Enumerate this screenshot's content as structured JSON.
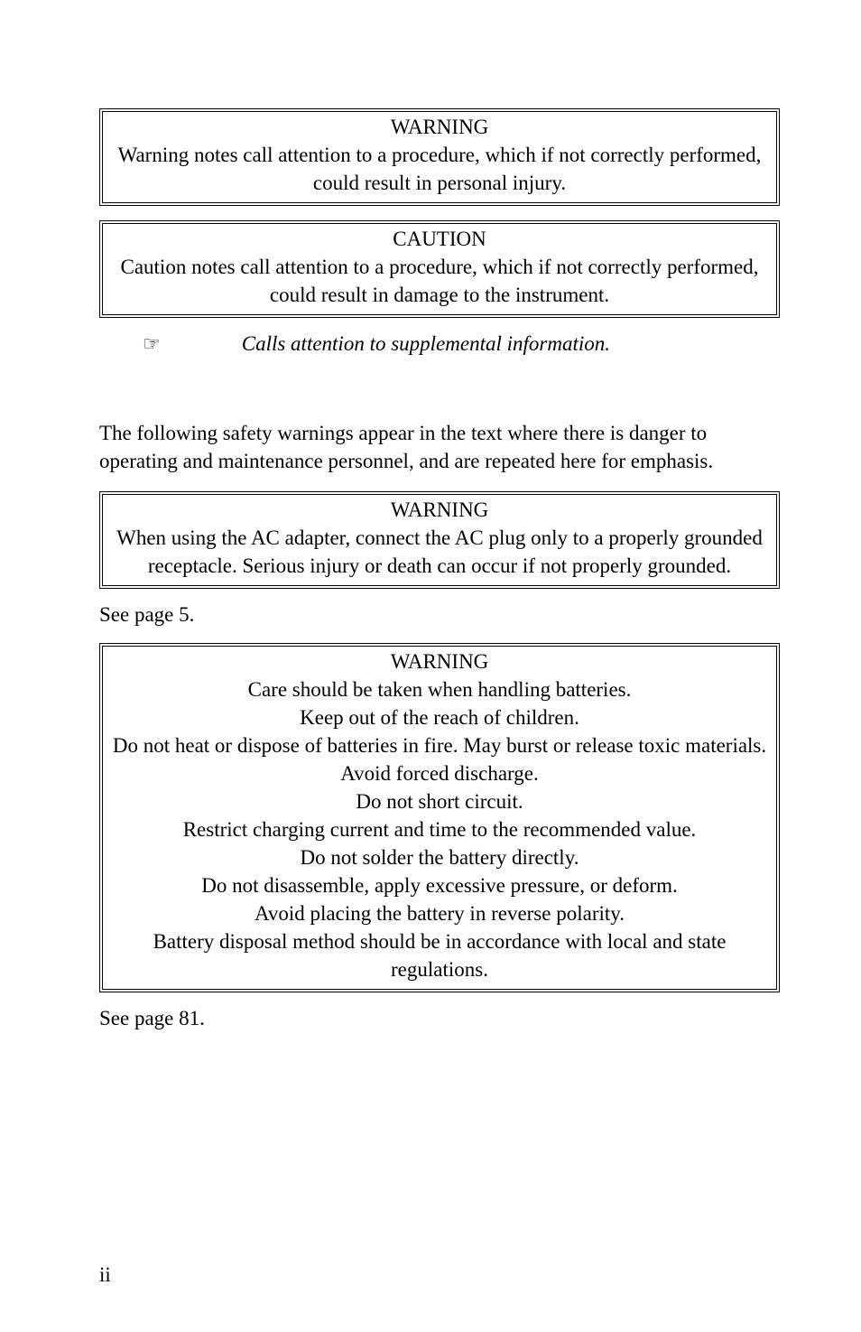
{
  "boxes": {
    "warning_def": {
      "title": "WARNING",
      "body": "Warning notes call attention to a procedure, which if not correctly performed, could result in personal injury."
    },
    "caution_def": {
      "title": "CAUTION",
      "body": "Caution notes call attention to a procedure, which if not correctly performed, could result in damage to the instrument."
    }
  },
  "note": {
    "icon": "☞",
    "text": "Calls attention to supplemental information."
  },
  "intro_para": "The following safety warnings appear in the text where there is danger to operating and maintenance personnel, and are repeated here for emphasis.",
  "warning_ac": {
    "title": "WARNING",
    "body": "When using the AC adapter, connect the AC plug only to a properly grounded receptacle. Serious injury or death can occur if not properly grounded."
  },
  "see_ref_1": "See page 5.",
  "warning_battery": {
    "title": "WARNING",
    "lines": [
      "Care should be taken when handling batteries.",
      "Keep out of the reach of children.",
      "Do not heat or dispose of batteries in fire. May burst or release toxic materials.",
      "Avoid forced discharge.",
      "Do not short circuit.",
      "Restrict charging current and time to the recommended value.",
      "Do not solder the battery directly.",
      "Do not disassemble, apply excessive pressure, or deform.",
      "Avoid placing the battery in reverse polarity.",
      "Battery disposal method should be in accordance with local and state regulations."
    ]
  },
  "see_ref_2": "See page 81.",
  "page_number": "ii"
}
